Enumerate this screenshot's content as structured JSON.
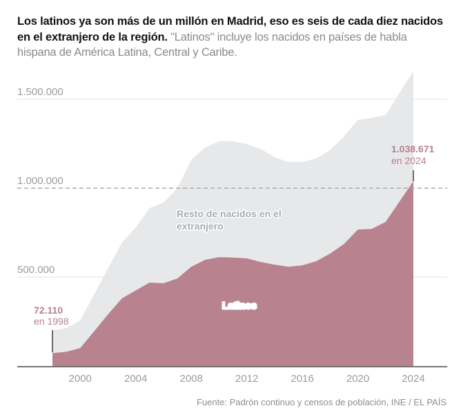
{
  "header": {
    "title_bold": "Los latinos ya son más de un millón en Madrid, eso es seis de cada diez nacidos en el extranjero de la región.",
    "title_light": "\"Latinos\" incluye los nacidos en países de habla hispana de América Latina, Central y Caribe."
  },
  "source": "Fuente: Padrón continuo y censos de población, INE / EL PAÍS",
  "colors": {
    "latinos": "#b8828f",
    "resto": "#e6e8ea",
    "grid": "#e4e4e4",
    "reference_line": "#aaaaaa",
    "axis": "#222222",
    "annotation": "#b7808f",
    "series_label_resto": "#a9abb1",
    "series_label_latinos": "#ffffff"
  },
  "chart_data": {
    "type": "area",
    "stacked": true,
    "title": "Los latinos ya son más de un millón en Madrid",
    "xlabel": "",
    "ylabel": "",
    "x": [
      1998,
      1999,
      2000,
      2001,
      2002,
      2003,
      2004,
      2005,
      2006,
      2007,
      2008,
      2009,
      2010,
      2011,
      2012,
      2013,
      2014,
      2015,
      2016,
      2017,
      2018,
      2019,
      2020,
      2021,
      2022,
      2023,
      2024
    ],
    "x_ticks": [
      2000,
      2004,
      2008,
      2012,
      2016,
      2020,
      2024
    ],
    "x_tick_labels": [
      "2000",
      "2004",
      "2008",
      "2012",
      "2016",
      "2020",
      "2024"
    ],
    "xlim": [
      1995.5,
      2025
    ],
    "ylim": [
      0,
      1700000
    ],
    "y_ticks": [
      500000,
      1000000,
      1500000
    ],
    "y_tick_labels": [
      "500.000",
      "1.000.000",
      "1.500.000"
    ],
    "reference_line": {
      "value": 1000000,
      "style": "dashed"
    },
    "grid": true,
    "series": [
      {
        "name": "Latinos",
        "label": "Latinos",
        "values": [
          72110,
          80000,
          101000,
          195000,
          290000,
          380000,
          425000,
          469000,
          465000,
          492000,
          558000,
          597000,
          612000,
          610000,
          605000,
          585000,
          570000,
          558000,
          566000,
          589000,
          632000,
          686000,
          767000,
          771000,
          810000,
          925000,
          1038671
        ]
      },
      {
        "name": "Resto de nacidos en el extranjero",
        "label": "Resto de nacidos en el extranjero",
        "total_values": [
          201000,
          213000,
          256000,
          402000,
          548000,
          694000,
          779000,
          888000,
          919000,
          1000000,
          1159000,
          1229000,
          1264000,
          1264000,
          1248000,
          1221000,
          1174000,
          1147000,
          1147000,
          1167000,
          1213000,
          1291000,
          1384000,
          1395000,
          1411000,
          1535000,
          1659000
        ]
      }
    ],
    "annotations": [
      {
        "value_label": "72.110",
        "year_label": "en 1998",
        "x": 1998,
        "y": 72110
      },
      {
        "value_label": "1.038.671",
        "year_label": "en 2024",
        "x": 2024,
        "y": 1038671
      }
    ]
  }
}
